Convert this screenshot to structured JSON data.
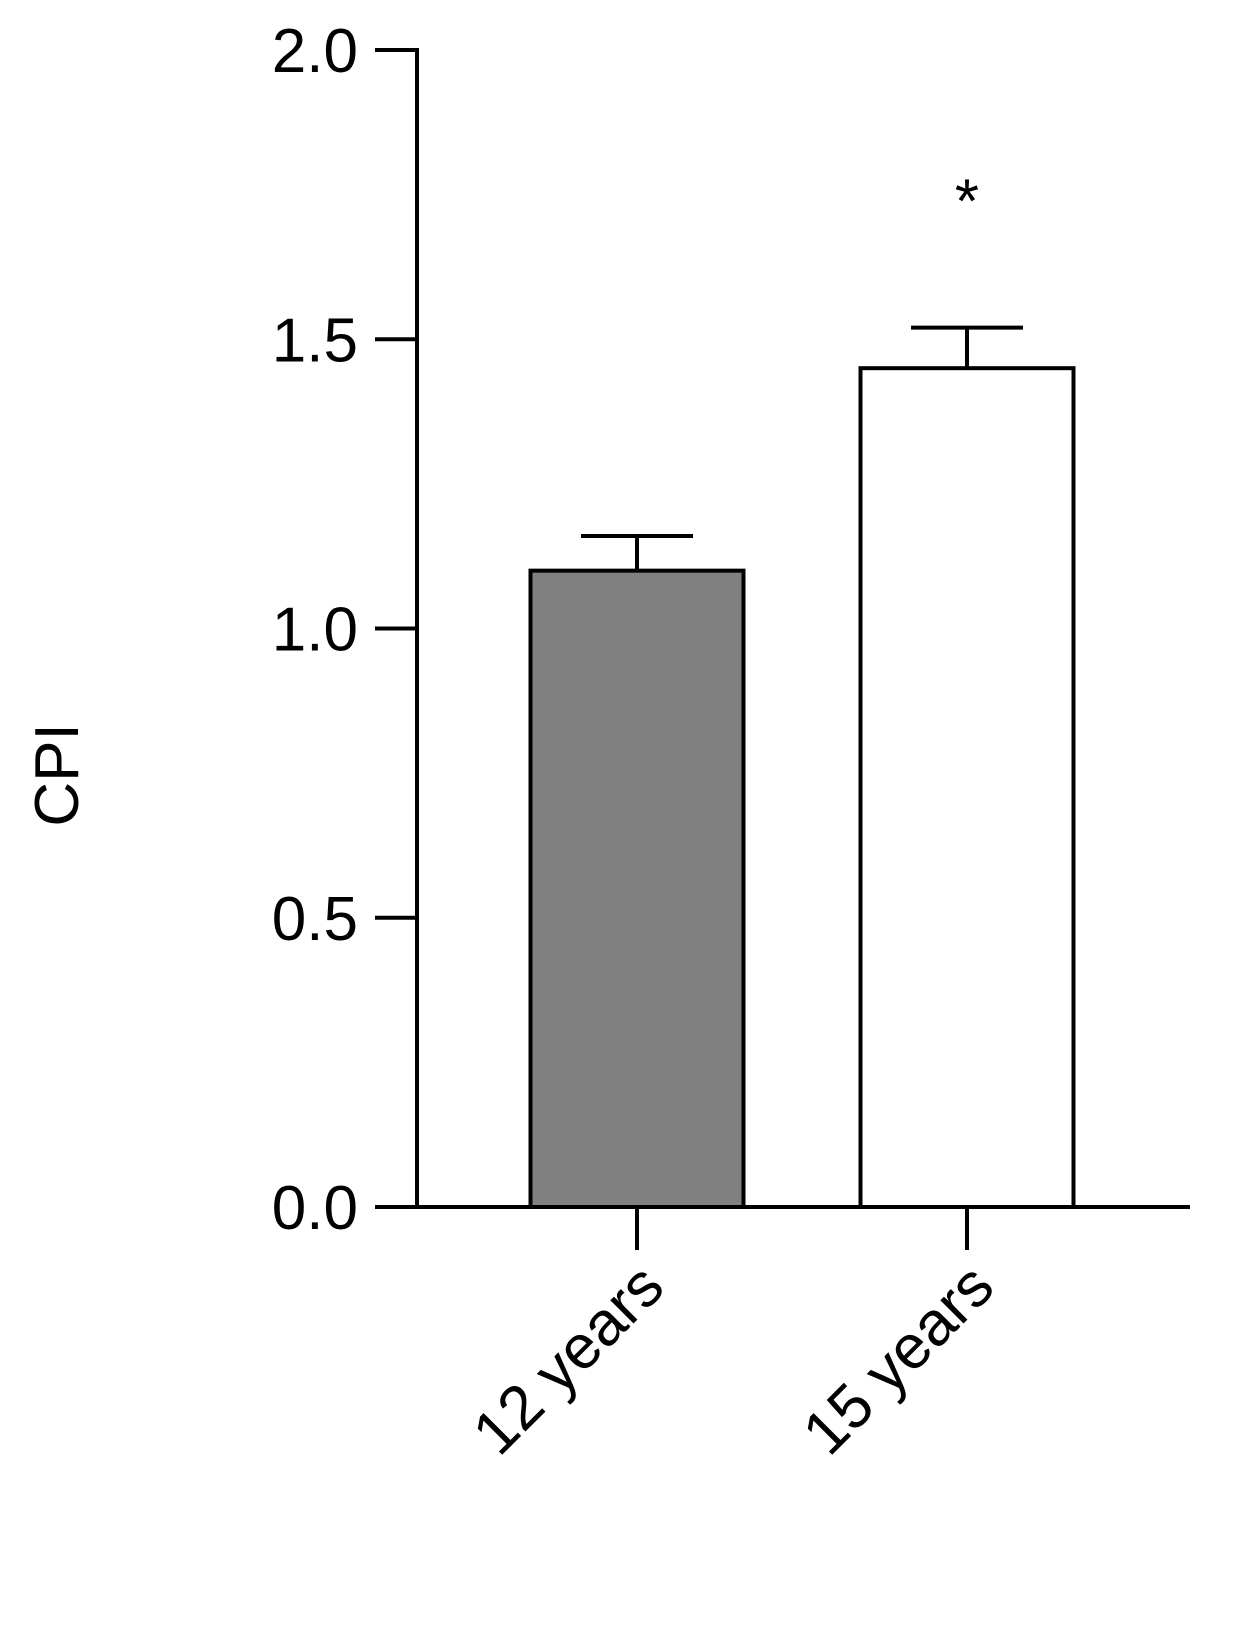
{
  "chart_data": {
    "type": "bar",
    "y_label": "CPI",
    "categories": [
      "12 years",
      "15 years"
    ],
    "values": [
      1.1,
      1.45
    ],
    "errors": [
      0.06,
      0.07
    ],
    "colors": [
      "#808080",
      "#ffffff"
    ],
    "significance": [
      null,
      "*"
    ],
    "ylim": [
      0,
      2
    ],
    "yticks": [
      {
        "value": 0,
        "label": "0.0"
      },
      0.5,
      {
        "value": 1,
        "label": "1.0"
      },
      1.5,
      {
        "value": 2,
        "label": "2.0"
      }
    ],
    "grid": false
  }
}
